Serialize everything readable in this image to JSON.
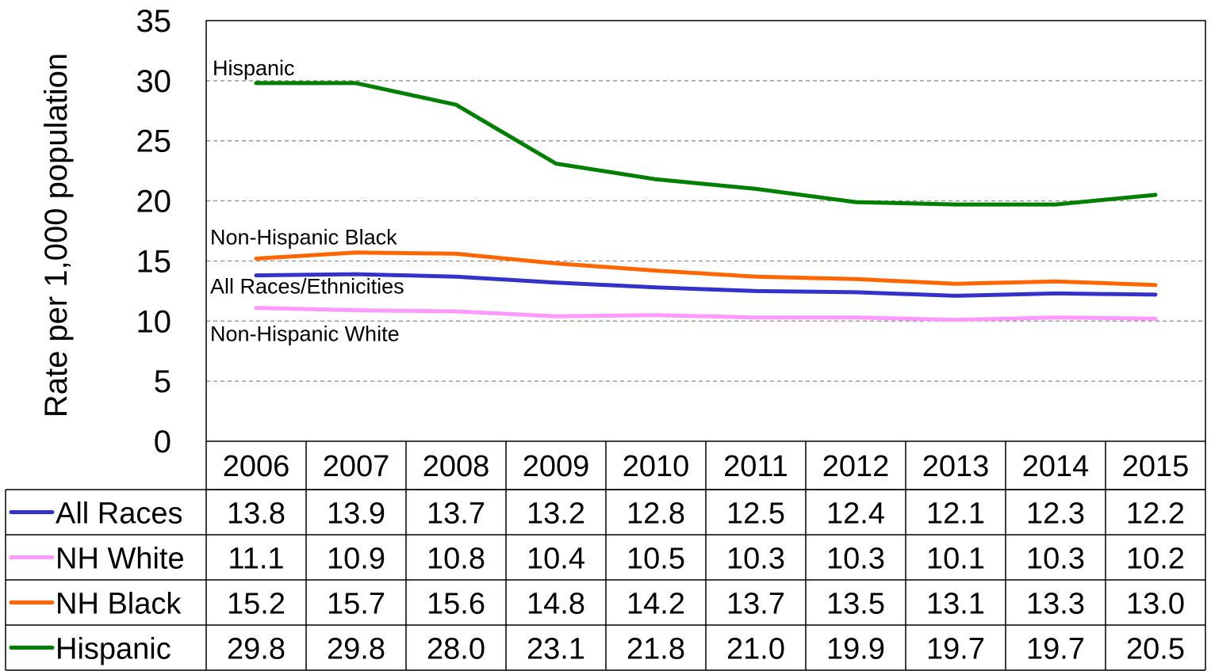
{
  "chart_data": {
    "type": "line",
    "title": "",
    "xlabel": "",
    "ylabel": "Rate per 1,000 population",
    "ylim": [
      0,
      35
    ],
    "yticks": [
      0,
      5,
      10,
      15,
      20,
      25,
      30,
      35
    ],
    "grid": true,
    "categories": [
      "2006",
      "2007",
      "2008",
      "2009",
      "2010",
      "2011",
      "2012",
      "2013",
      "2014",
      "2015"
    ],
    "series": [
      {
        "name": "All Races",
        "label": "All Races/Ethnicities",
        "color": "#3333cc",
        "values": [
          13.8,
          13.9,
          13.7,
          13.2,
          12.8,
          12.5,
          12.4,
          12.1,
          12.3,
          12.2
        ]
      },
      {
        "name": "NH White",
        "label": "Non-Hispanic White",
        "color": "#ff99ff",
        "values": [
          11.1,
          10.9,
          10.8,
          10.4,
          10.5,
          10.3,
          10.3,
          10.1,
          10.3,
          10.2
        ]
      },
      {
        "name": "NH Black",
        "label": "Non-Hispanic Black",
        "color": "#ff6600",
        "values": [
          15.2,
          15.7,
          15.6,
          14.8,
          14.2,
          13.7,
          13.5,
          13.1,
          13.3,
          13.0
        ]
      },
      {
        "name": "Hispanic",
        "label": "Hispanic",
        "color": "#008000",
        "values": [
          29.8,
          29.8,
          28.0,
          23.1,
          21.8,
          21.0,
          19.9,
          19.7,
          19.7,
          20.5
        ]
      }
    ],
    "table": {
      "rows": [
        {
          "label": "All Races",
          "values": [
            "13.8",
            "13.9",
            "13.7",
            "13.2",
            "12.8",
            "12.5",
            "12.4",
            "12.1",
            "12.3",
            "12.2"
          ]
        },
        {
          "label": "NH White",
          "values": [
            "11.1",
            "10.9",
            "10.8",
            "10.4",
            "10.5",
            "10.3",
            "10.3",
            "10.1",
            "10.3",
            "10.2"
          ]
        },
        {
          "label": "NH Black",
          "values": [
            "15.2",
            "15.7",
            "15.6",
            "14.8",
            "14.2",
            "13.7",
            "13.5",
            "13.1",
            "13.3",
            "13.0"
          ]
        },
        {
          "label": "Hispanic",
          "values": [
            "29.8",
            "29.8",
            "28.0",
            "23.1",
            "21.8",
            "21.0",
            "19.9",
            "19.7",
            "19.7",
            "20.5"
          ]
        }
      ]
    }
  }
}
